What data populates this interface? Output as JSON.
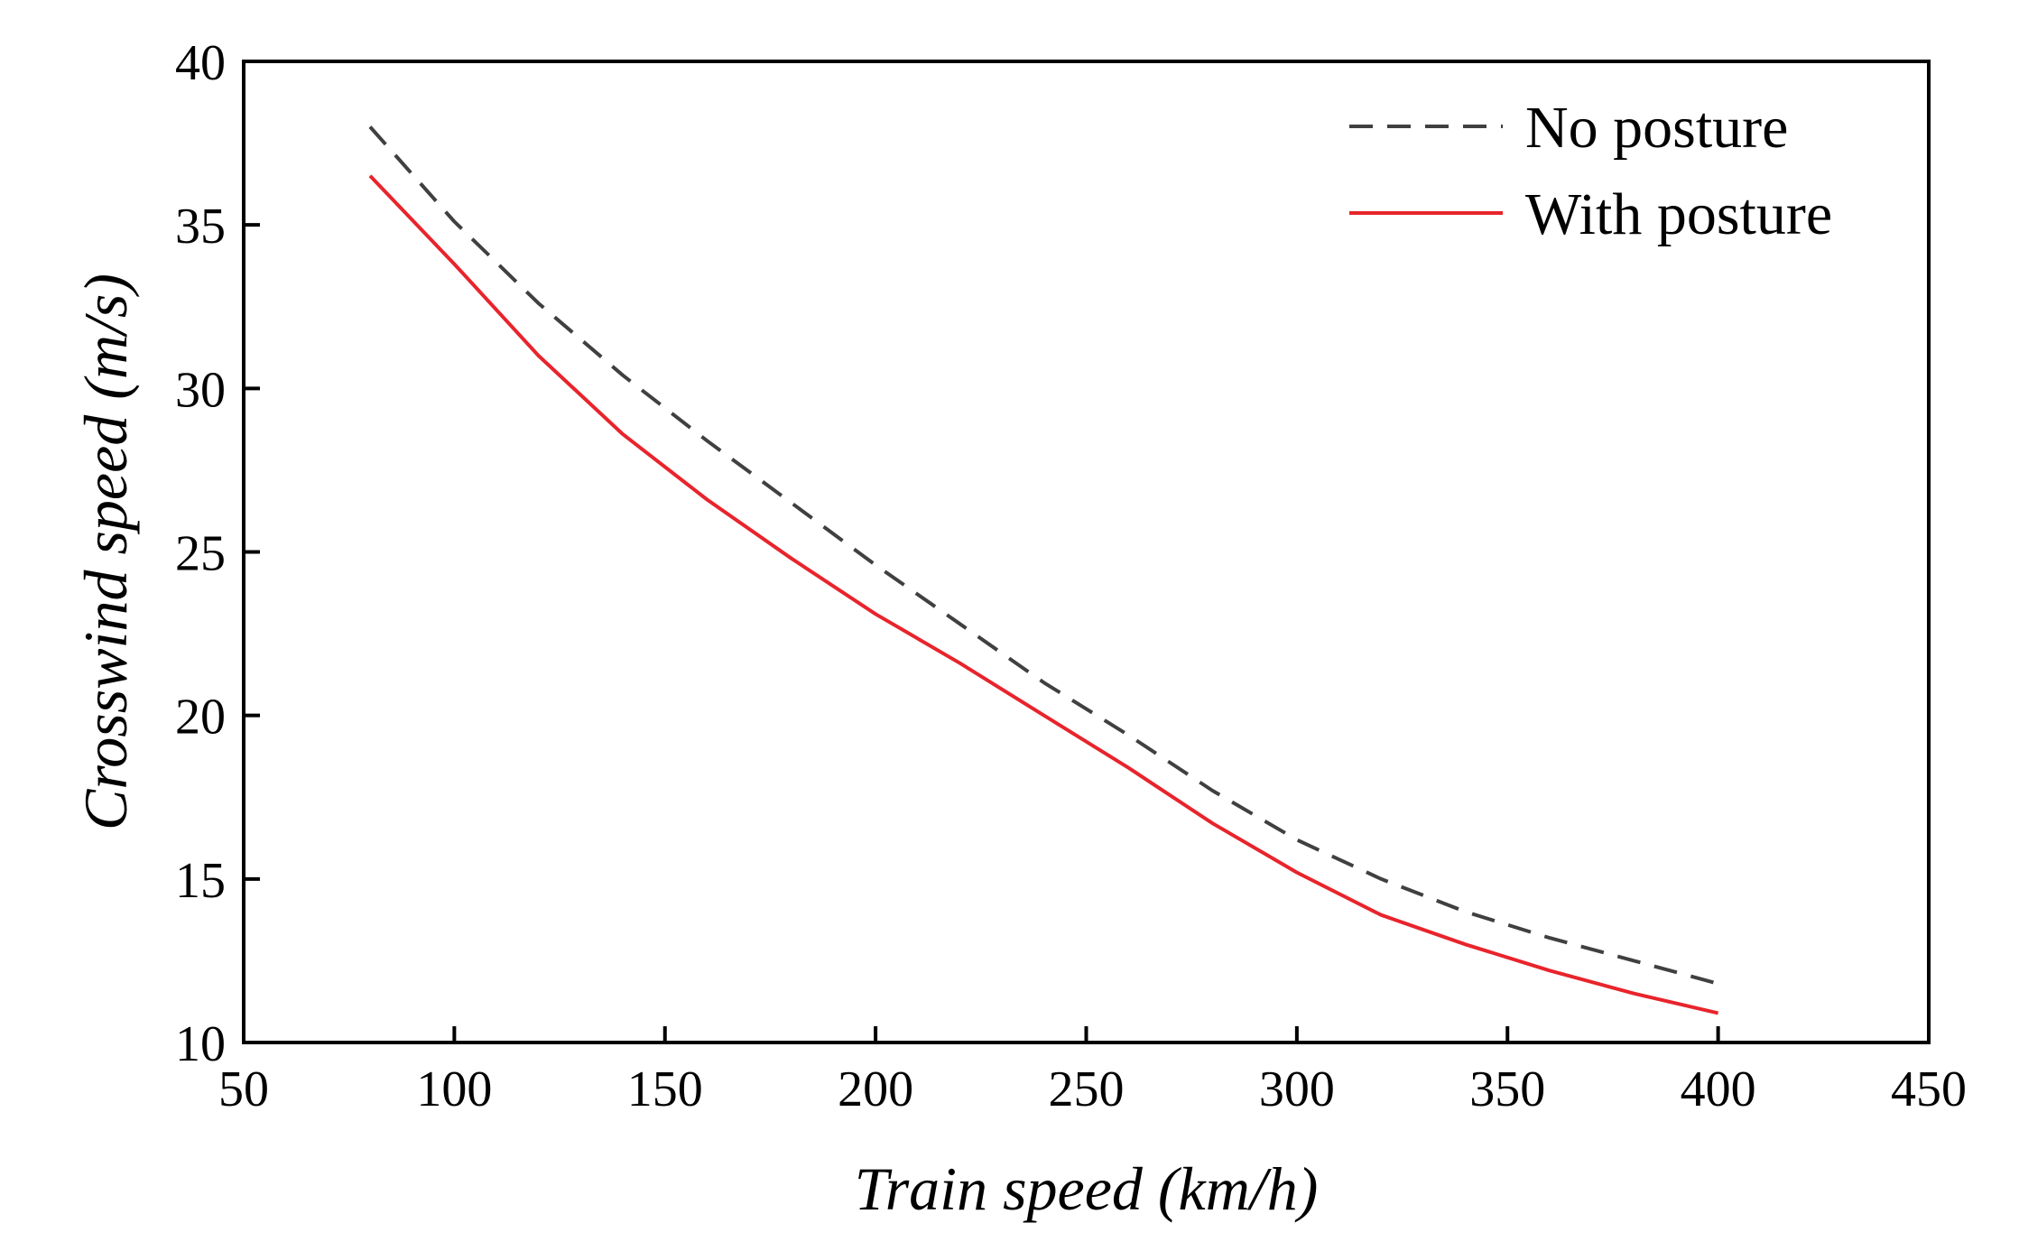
{
  "chart_data": {
    "type": "line",
    "title": "",
    "xlabel": "Train speed (km/h)",
    "ylabel": "Crosswind speed (m/s)",
    "xlim": [
      50,
      450
    ],
    "ylim": [
      10,
      40
    ],
    "xticks": [
      50,
      100,
      150,
      200,
      250,
      300,
      350,
      400,
      450
    ],
    "yticks": [
      10,
      15,
      20,
      25,
      30,
      35,
      40
    ],
    "grid": false,
    "legend_position": "top-right",
    "x": [
      80,
      100,
      120,
      140,
      160,
      180,
      200,
      220,
      240,
      260,
      280,
      300,
      320,
      340,
      360,
      380,
      400
    ],
    "series": [
      {
        "name": "No posture",
        "style": "dashed",
        "color": "#404040",
        "values": [
          38.0,
          35.1,
          32.6,
          30.4,
          28.4,
          26.5,
          24.6,
          22.8,
          21.0,
          19.4,
          17.7,
          16.2,
          15.0,
          14.0,
          13.2,
          12.5,
          11.8
        ]
      },
      {
        "name": "With posture",
        "style": "solid",
        "color": "#e8242c",
        "values": [
          36.5,
          33.8,
          31.0,
          28.6,
          26.6,
          24.8,
          23.1,
          21.6,
          20.0,
          18.4,
          16.7,
          15.2,
          13.9,
          13.0,
          12.2,
          11.5,
          10.9
        ]
      }
    ]
  }
}
